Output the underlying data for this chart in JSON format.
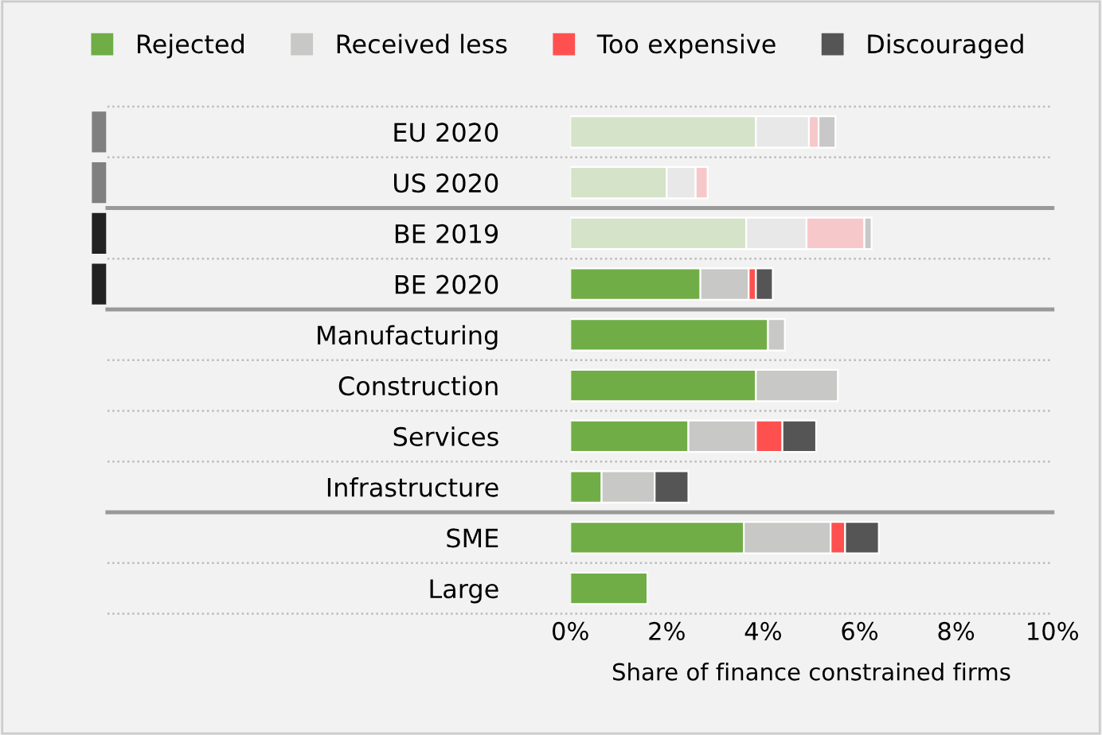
{
  "chart_data": {
    "type": "bar",
    "orientation": "horizontal",
    "stacked": true,
    "xlabel": "Share of finance constrained firms",
    "categories": [
      "EU 2020",
      "US 2020",
      "BE 2019",
      "BE 2020",
      "Manufacturing",
      "Construction",
      "Services",
      "Infrastructure",
      "SME",
      "Large"
    ],
    "series": [
      {
        "name": "Rejected",
        "color": "#70ad47",
        "colors": [
          "#d5e3c9",
          "#d5e3c9",
          "#d5e3c9",
          "#70ad47",
          "#70ad47",
          "#70ad47",
          "#70ad47",
          "#70ad47",
          "#70ad47",
          "#70ad47"
        ],
        "values": [
          3.85,
          2.0,
          3.65,
          2.7,
          4.1,
          3.85,
          2.45,
          0.65,
          3.6,
          1.6
        ]
      },
      {
        "name": "Received less",
        "color": "#c8c8c6",
        "colors": [
          "#e8e8e8",
          "#e8e8e8",
          "#e8e8e8",
          "#c8c8c6",
          "#c8c8c6",
          "#c8c8c6",
          "#c8c8c6",
          "#c8c8c6",
          "#c8c8c6",
          "#c8c8c6"
        ],
        "values": [
          1.1,
          0.6,
          1.25,
          1.0,
          0.35,
          1.7,
          1.4,
          1.1,
          1.8,
          null
        ]
      },
      {
        "name": "Too expensive",
        "color": "#ff5050",
        "colors": [
          "#f6c8ca",
          "#f6c8ca",
          "#f6c8ca",
          "#ff5050",
          "#ff5050",
          "#ff5050",
          "#ff5050",
          "#ff5050",
          "#ff5050",
          "#ff5050"
        ],
        "values": [
          0.2,
          0.25,
          1.2,
          0.15,
          null,
          null,
          0.55,
          null,
          0.3,
          null
        ]
      },
      {
        "name": "Discouraged",
        "color": "#555555",
        "colors": [
          "#c8c8c8",
          "#c8c8c8",
          "#c8c8c8",
          "#555555",
          "#555555",
          "#555555",
          "#555555",
          "#555555",
          "#555555",
          "#555555"
        ],
        "values": [
          0.35,
          null,
          0.15,
          0.35,
          null,
          null,
          0.7,
          0.7,
          0.7,
          null
        ]
      }
    ],
    "xlim": [
      0,
      10
    ],
    "xticks": [
      {
        "value": 0,
        "label": "0%"
      },
      {
        "value": 2,
        "label": "2%"
      },
      {
        "value": 4,
        "label": "4%"
      },
      {
        "value": 6,
        "label": "6%"
      },
      {
        "value": 8,
        "label": "8%"
      },
      {
        "value": 10,
        "label": "10%"
      }
    ],
    "grid": false,
    "legend": "top"
  }
}
